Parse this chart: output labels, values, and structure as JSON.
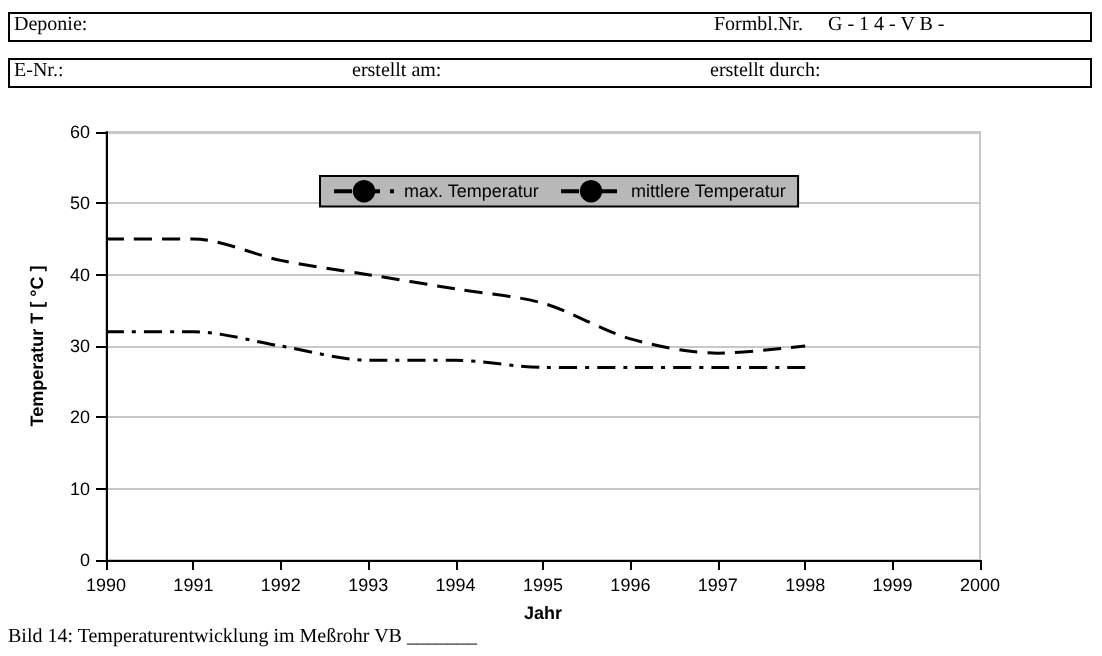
{
  "chart_data": {
    "type": "line",
    "xlabel": "Jahr",
    "ylabel": "Temperatur T [ °C ]",
    "x": [
      1990,
      1991,
      1992,
      1993,
      1994,
      1995,
      1996,
      1997,
      1998
    ],
    "series": [
      {
        "name": "max. Temperatur",
        "color": "#000000",
        "line_style": "dashed",
        "values": [
          45,
          45,
          42,
          40,
          38,
          36,
          31,
          29,
          30
        ]
      },
      {
        "name": "mittlere Temperatur",
        "color": "#000000",
        "line_style": "dotted",
        "values": [
          32,
          32,
          30,
          28,
          28,
          27,
          27,
          27,
          27
        ]
      }
    ],
    "xlim": [
      1990,
      2000
    ],
    "xticks": [
      1990,
      1991,
      1992,
      1993,
      1994,
      1995,
      1996,
      1997,
      1998,
      1999,
      2000
    ],
    "ylim": [
      0,
      60
    ],
    "yticks": [
      0,
      10,
      20,
      30,
      40,
      50,
      60
    ],
    "grid": "y",
    "legend": "top",
    "marker": "none",
    "annotations": [
      "Deponie:",
      "Formbl.Nr.",
      "G - 1 4 - V B -",
      "E-Nr.:",
      "erstellt am:",
      "erstellt durch:",
      "Bild 14: Temperaturentwicklung im Meßrohr VB _______"
    ]
  }
}
